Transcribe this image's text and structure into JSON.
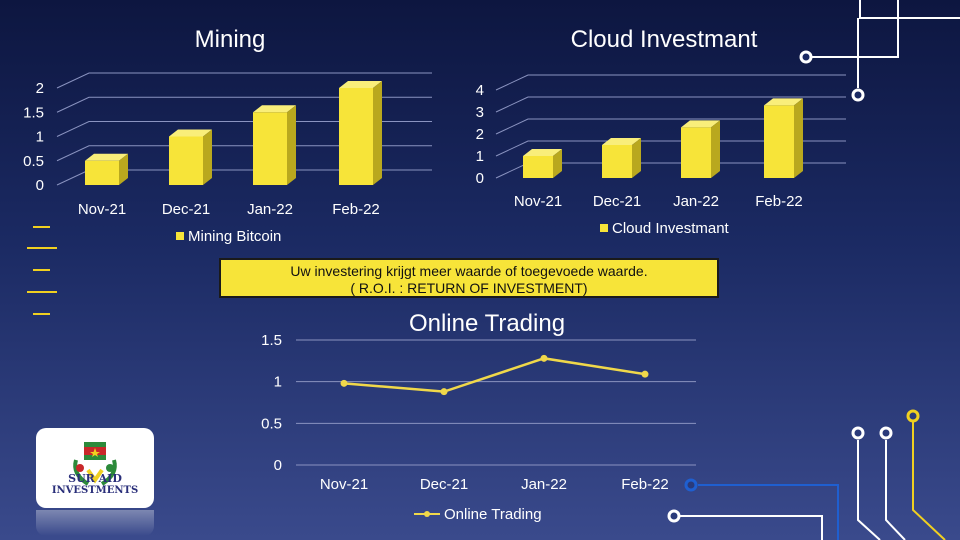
{
  "slide": {
    "banner_line1": "Uw investering  krijgt meer waarde of toegevoede waarde.",
    "banner_line2": "( R.O.I.  : RETURN OF INVESTMENT)",
    "logo_line1": "SUR AID",
    "logo_line2": "INVESTMENTS"
  },
  "colors": {
    "background_top": "#0d1640",
    "bar_yellow": "#f7e439",
    "line_yellow": "#f0d84a",
    "accent_blue": "#1f5fd0"
  },
  "chart_data": [
    {
      "type": "bar",
      "title": "Mining",
      "categories": [
        "Nov-21",
        "Dec-21",
        "Jan-22",
        "Feb-22"
      ],
      "series": [
        {
          "name": "Mining Bitcoin",
          "values": [
            0.5,
            1.0,
            1.5,
            2.0
          ]
        }
      ],
      "yticks": [
        "0",
        "0.5",
        "1",
        "1.5",
        "2"
      ],
      "ylim": [
        0,
        2
      ],
      "legend": "bottom",
      "grid": true
    },
    {
      "type": "bar",
      "title": "Cloud Investmant",
      "categories": [
        "Nov-21",
        "Dec-21",
        "Jan-22",
        "Feb-22"
      ],
      "series": [
        {
          "name": "Cloud Investmant",
          "values": [
            1.0,
            1.5,
            2.3,
            3.3
          ]
        }
      ],
      "yticks": [
        "0",
        "1",
        "2",
        "3",
        "4"
      ],
      "ylim": [
        0,
        4
      ],
      "legend": "bottom",
      "grid": true
    },
    {
      "type": "line",
      "title": "Online Trading",
      "categories": [
        "Nov-21",
        "Dec-21",
        "Jan-22",
        "Feb-22"
      ],
      "series": [
        {
          "name": "Online Trading",
          "values": [
            0.98,
            0.88,
            1.28,
            1.09
          ]
        }
      ],
      "yticks": [
        "0",
        "0.5",
        "1",
        "1.5"
      ],
      "ylim": [
        0,
        1.5
      ],
      "legend": "bottom",
      "grid": true
    }
  ]
}
